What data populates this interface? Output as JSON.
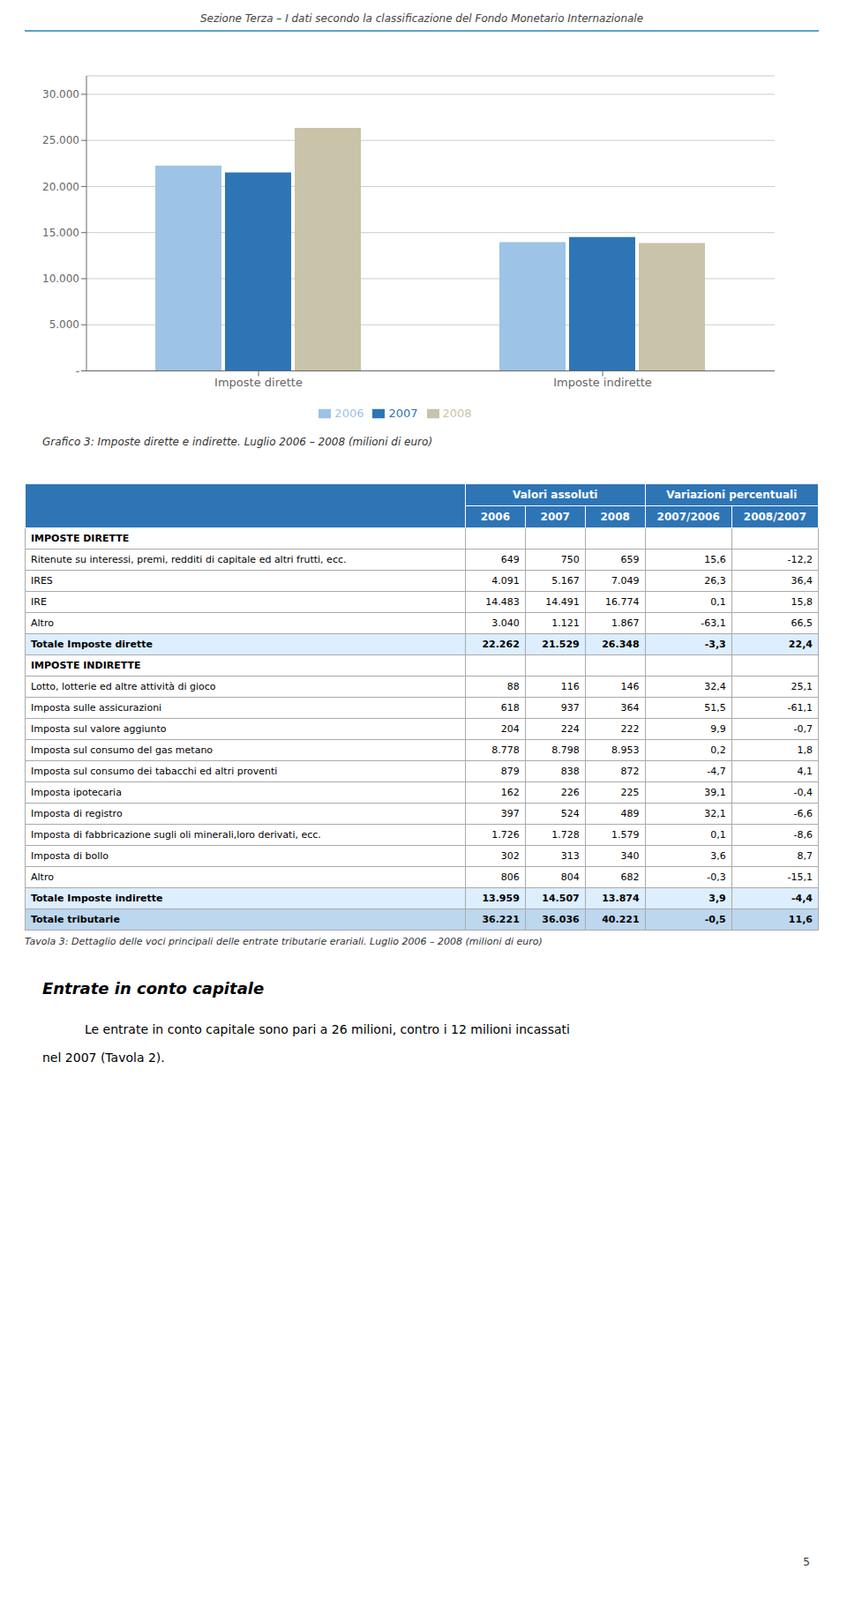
{
  "page_title": "Sezione Terza – I dati secondo la classificazione del Fondo Monetario Internazionale",
  "page_number": "5",
  "chart_data": {
    "type": "bar",
    "title": "Grafico 3: Imposte dirette e indirette. Luglio 2006 – 2008 (milioni di euro)",
    "categories": [
      "Imposte dirette",
      "Imposte indirette"
    ],
    "series": [
      {
        "name": "2006",
        "color": "#9DC3E6",
        "values": [
          22262,
          13959
        ]
      },
      {
        "name": "2007",
        "color": "#2E75B6",
        "values": [
          21529,
          14507
        ]
      },
      {
        "name": "2008",
        "color": "#C9C3A9",
        "values": [
          26348,
          13874
        ]
      }
    ],
    "ylim": [
      0,
      32000
    ],
    "yticks": [
      {
        "value": 0,
        "label": "-"
      },
      {
        "value": 5000,
        "label": "5.000"
      },
      {
        "value": 10000,
        "label": "10.000"
      },
      {
        "value": 15000,
        "label": "15.000"
      },
      {
        "value": 20000,
        "label": "20.000"
      },
      {
        "value": 25000,
        "label": "25.000"
      },
      {
        "value": 30000,
        "label": "30.000"
      }
    ],
    "grid": true,
    "legend": "bottom"
  },
  "table": {
    "header_groups": [
      {
        "label": "Valori assoluti",
        "span": 3
      },
      {
        "label": "Variazioni percentuali",
        "span": 2
      }
    ],
    "col_headers": [
      "2006",
      "2007",
      "2008",
      "2007/2006",
      "2008/2007"
    ],
    "header_bg": "#2E75B6",
    "header_fg": "#FFFFFF",
    "rows": [
      {
        "label": "IMPOSTE DIRETTE",
        "values": [
          null,
          null,
          null,
          null,
          null
        ],
        "type": "section_header"
      },
      {
        "label": "Ritenute su interessi, premi, redditi di capitale ed altri frutti, ecc.",
        "values": [
          "649",
          "750",
          "659",
          "15,6",
          "-12,2"
        ],
        "type": "data"
      },
      {
        "label": "IRES",
        "values": [
          "4.091",
          "5.167",
          "7.049",
          "26,3",
          "36,4"
        ],
        "type": "data"
      },
      {
        "label": "IRE",
        "values": [
          "14.483",
          "14.491",
          "16.774",
          "0,1",
          "15,8"
        ],
        "type": "data"
      },
      {
        "label": "Altro",
        "values": [
          "3.040",
          "1.121",
          "1.867",
          "-63,1",
          "66,5"
        ],
        "type": "data"
      },
      {
        "label": "Totale Imposte dirette",
        "values": [
          "22.262",
          "21.529",
          "26.348",
          "-3,3",
          "22,4"
        ],
        "type": "total"
      },
      {
        "label": "IMPOSTE INDIRETTE",
        "values": [
          null,
          null,
          null,
          null,
          null
        ],
        "type": "section_header"
      },
      {
        "label": "Lotto, lotterie ed altre attività di gioco",
        "values": [
          "88",
          "116",
          "146",
          "32,4",
          "25,1"
        ],
        "type": "data"
      },
      {
        "label": "Imposta sulle assicurazioni",
        "values": [
          "618",
          "937",
          "364",
          "51,5",
          "-61,1"
        ],
        "type": "data"
      },
      {
        "label": "Imposta sul valore aggiunto",
        "values": [
          "204",
          "224",
          "222",
          "9,9",
          "-0,7"
        ],
        "type": "data"
      },
      {
        "label": "Imposta sul consumo del gas metano",
        "values": [
          "8.778",
          "8.798",
          "8.953",
          "0,2",
          "1,8"
        ],
        "type": "data"
      },
      {
        "label": "Imposta sul consumo dei tabacchi ed altri proventi",
        "values": [
          "879",
          "838",
          "872",
          "-4,7",
          "4,1"
        ],
        "type": "data"
      },
      {
        "label": "Imposta ipotecaria",
        "values": [
          "162",
          "226",
          "225",
          "39,1",
          "-0,4"
        ],
        "type": "data"
      },
      {
        "label": "Imposta di registro",
        "values": [
          "397",
          "524",
          "489",
          "32,1",
          "-6,6"
        ],
        "type": "data"
      },
      {
        "label": "Imposta di fabbricazione sugli oli minerali,loro derivati, ecc.",
        "values": [
          "1.726",
          "1.728",
          "1.579",
          "0,1",
          "-8,6"
        ],
        "type": "data"
      },
      {
        "label": "Imposta di bollo",
        "values": [
          "302",
          "313",
          "340",
          "3,6",
          "8,7"
        ],
        "type": "data"
      },
      {
        "label": "Altro",
        "values": [
          "806",
          "804",
          "682",
          "-0,3",
          "-15,1"
        ],
        "type": "data"
      },
      {
        "label": "Totale Imposte indirette",
        "values": [
          "13.959",
          "14.507",
          "13.874",
          "3,9",
          "-4,4"
        ],
        "type": "total"
      },
      {
        "label": "Totale tributarie",
        "values": [
          "36.221",
          "36.036",
          "40.221",
          "-0,5",
          "11,6"
        ],
        "type": "grand_total"
      }
    ]
  },
  "table_caption": "Tavola 3: Dettaglio delle voci principali delle entrate tributarie erariali. Luglio 2006 – 2008 (milioni di euro)",
  "section_title": "Entrate in conto capitale",
  "paragraph": [
    "Le entrate in conto capitale sono pari a 26 milioni, contro i 12 milioni incassati",
    "nel 2007 (Tavola 2)."
  ]
}
